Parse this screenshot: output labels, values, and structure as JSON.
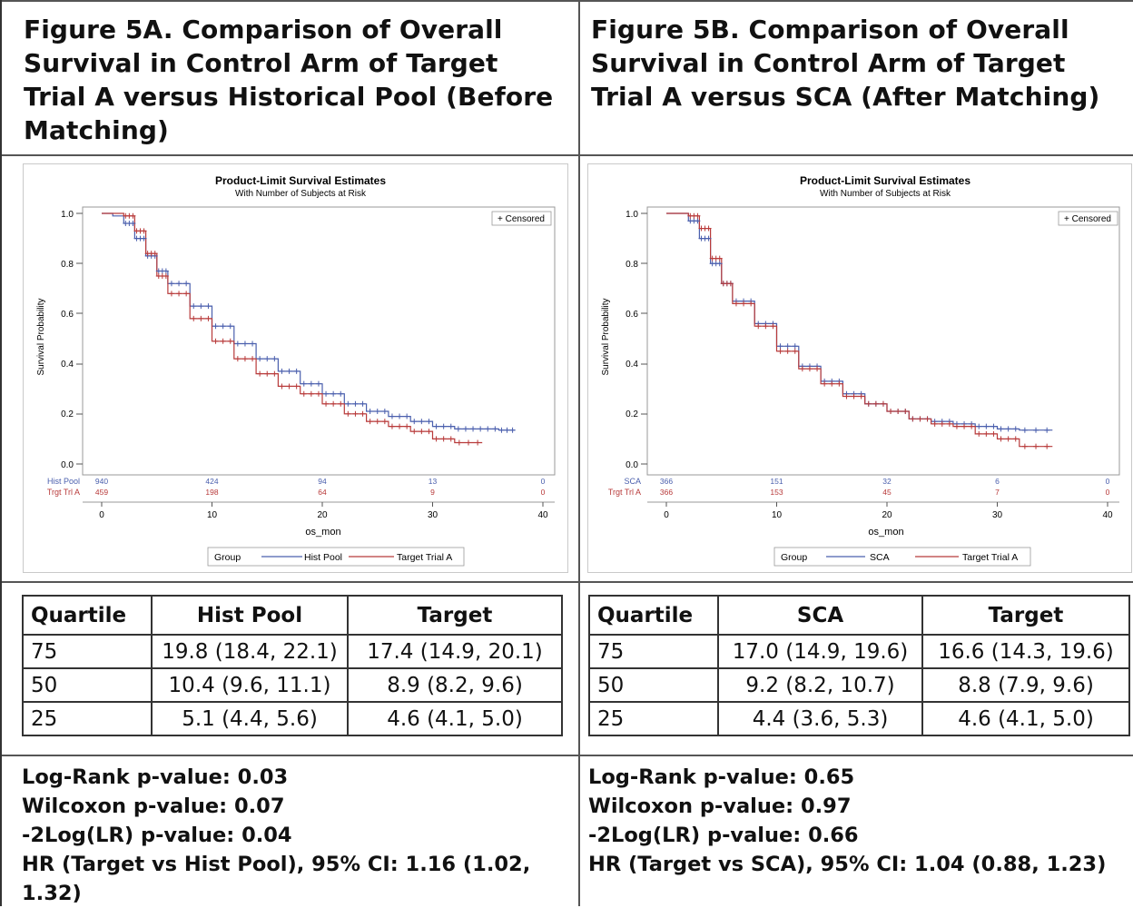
{
  "panels": [
    {
      "id": "A",
      "title": "Figure 5A. Comparison of Overall Survival in Control Arm of Target Trial A versus Historical Pool (Before Matching)",
      "table": {
        "headers": [
          "Quartile",
          "Hist Pool",
          "Target"
        ],
        "rows": [
          [
            "75",
            "19.8 (18.4, 22.1)",
            "17.4 (14.9, 20.1)"
          ],
          [
            "50",
            "10.4 (9.6, 11.1)",
            "8.9 (8.2, 9.6)"
          ],
          [
            "25",
            "5.1 (4.4, 5.6)",
            "4.6 (4.1, 5.0)"
          ]
        ]
      },
      "stats": [
        "Log-Rank p-value: 0.03",
        "Wilcoxon p-value: 0.07",
        "-2Log(LR) p-value: 0.04",
        "HR (Target vs Hist Pool), 95% CI: 1.16 (1.02, 1.32)"
      ]
    },
    {
      "id": "B",
      "title": "Figure 5B. Comparison of Overall Survival in Control Arm of Target Trial A versus SCA (After Matching)",
      "table": {
        "headers": [
          "Quartile",
          "SCA",
          "Target"
        ],
        "rows": [
          [
            "75",
            "17.0 (14.9, 19.6)",
            "16.6 (14.3, 19.6)"
          ],
          [
            "50",
            "9.2 (8.2, 10.7)",
            "8.8 (7.9, 9.6)"
          ],
          [
            "25",
            "4.4 (3.6, 5.3)",
            "4.6 (4.1, 5.0)"
          ]
        ]
      },
      "stats": [
        "Log-Rank p-value: 0.65",
        "Wilcoxon p-value: 0.97",
        "-2Log(LR) p-value: 0.66",
        "HR (Target vs SCA), 95% CI: 1.04 (0.88, 1.23)"
      ]
    }
  ],
  "chart_data": [
    {
      "type": "line",
      "title": "Product-Limit Survival Estimates",
      "subtitle": "With Number of Subjects at Risk",
      "xlabel": "os_mon",
      "ylabel": "Survival Probability",
      "xlim": [
        0,
        40
      ],
      "ylim": [
        0,
        1
      ],
      "xticks": [
        0,
        10,
        20,
        30,
        40
      ],
      "yticks": [
        "0.0",
        "0.2",
        "0.4",
        "0.6",
        "0.8",
        "1.0"
      ],
      "legend_inset": "+ Censored",
      "legend_title": "Group",
      "grid": false,
      "series": [
        {
          "name": "Hist Pool",
          "risk_label": "Hist Pool",
          "color": "#4a5fad",
          "x": [
            0,
            1,
            2,
            3,
            4,
            5,
            6,
            8,
            10,
            12,
            14,
            16,
            18,
            20,
            22,
            24,
            26,
            28,
            30,
            32,
            34,
            36,
            37.5
          ],
          "y": [
            1.0,
            0.99,
            0.96,
            0.9,
            0.83,
            0.77,
            0.72,
            0.63,
            0.55,
            0.48,
            0.42,
            0.37,
            0.32,
            0.28,
            0.24,
            0.21,
            0.19,
            0.17,
            0.15,
            0.14,
            0.14,
            0.135,
            0.135
          ],
          "risk": [
            "940",
            "424",
            "94",
            "13",
            "0"
          ]
        },
        {
          "name": "Target Trial A",
          "risk_label": "Trgt Trl A",
          "color": "#b83a3a",
          "x": [
            0,
            1,
            2,
            3,
            4,
            5,
            6,
            8,
            10,
            12,
            14,
            16,
            18,
            20,
            22,
            24,
            26,
            28,
            30,
            32,
            34.5
          ],
          "y": [
            1.0,
            1.0,
            0.99,
            0.93,
            0.84,
            0.75,
            0.68,
            0.58,
            0.49,
            0.42,
            0.36,
            0.31,
            0.28,
            0.24,
            0.2,
            0.17,
            0.15,
            0.13,
            0.1,
            0.085,
            0.085
          ],
          "risk": [
            "459",
            "198",
            "64",
            "9",
            "0"
          ]
        }
      ]
    },
    {
      "type": "line",
      "title": "Product-Limit Survival Estimates",
      "subtitle": "With Number of Subjects at Risk",
      "xlabel": "os_mon",
      "ylabel": "Survival Probability",
      "xlim": [
        0,
        40
      ],
      "ylim": [
        0,
        1
      ],
      "xticks": [
        0,
        10,
        20,
        30,
        40
      ],
      "yticks": [
        "0.0",
        "0.2",
        "0.4",
        "0.6",
        "0.8",
        "1.0"
      ],
      "legend_inset": "+ Censored",
      "legend_title": "Group",
      "grid": false,
      "series": [
        {
          "name": "SCA",
          "risk_label": "SCA",
          "color": "#4a5fad",
          "x": [
            0,
            1,
            2,
            3,
            4,
            5,
            6,
            8,
            10,
            12,
            14,
            16,
            18,
            20,
            22,
            24,
            26,
            28,
            30,
            32,
            35
          ],
          "y": [
            1.0,
            1.0,
            0.97,
            0.9,
            0.8,
            0.72,
            0.65,
            0.56,
            0.47,
            0.39,
            0.33,
            0.28,
            0.24,
            0.21,
            0.18,
            0.17,
            0.16,
            0.15,
            0.14,
            0.135,
            0.135
          ],
          "risk": [
            "366",
            "151",
            "32",
            "6",
            "0"
          ]
        },
        {
          "name": "Target Trial A",
          "risk_label": "Trgt Trl A",
          "color": "#b83a3a",
          "x": [
            0,
            1,
            2,
            3,
            4,
            5,
            6,
            8,
            10,
            12,
            14,
            16,
            18,
            20,
            22,
            24,
            26,
            28,
            30,
            32,
            35
          ],
          "y": [
            1.0,
            1.0,
            0.99,
            0.94,
            0.82,
            0.72,
            0.64,
            0.55,
            0.45,
            0.38,
            0.32,
            0.27,
            0.24,
            0.21,
            0.18,
            0.16,
            0.15,
            0.12,
            0.1,
            0.07,
            0.07
          ],
          "risk": [
            "366",
            "153",
            "45",
            "7",
            "0"
          ]
        }
      ]
    }
  ]
}
